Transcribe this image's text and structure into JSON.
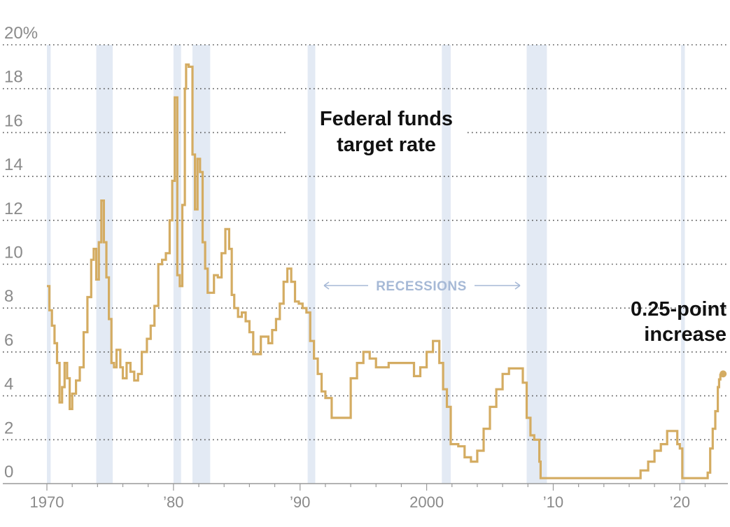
{
  "chart_data": {
    "type": "line",
    "title": "Federal funds\ntarget rate",
    "xlabel": "",
    "ylabel": "",
    "xlim": [
      1970,
      2023.3
    ],
    "ylim": [
      0,
      20
    ],
    "yticks": [
      {
        "value": 0,
        "label": "0"
      },
      {
        "value": 2,
        "label": "2"
      },
      {
        "value": 4,
        "label": "4"
      },
      {
        "value": 6,
        "label": "6"
      },
      {
        "value": 8,
        "label": "8"
      },
      {
        "value": 10,
        "label": "10"
      },
      {
        "value": 12,
        "label": "12"
      },
      {
        "value": 14,
        "label": "14"
      },
      {
        "value": 16,
        "label": "16"
      },
      {
        "value": 18,
        "label": "18"
      },
      {
        "value": 20,
        "label": "20%"
      }
    ],
    "xticks": [
      {
        "value": 1970,
        "label": "1970"
      },
      {
        "value": 1980,
        "label": "’80"
      },
      {
        "value": 1990,
        "label": "’90"
      },
      {
        "value": 2000,
        "label": "2000"
      },
      {
        "value": 2010,
        "label": "’10"
      },
      {
        "value": 2020,
        "label": "’20"
      }
    ],
    "grid": true,
    "recession_label": "RECESSIONS",
    "recessions": [
      [
        1970.0,
        1970.3
      ],
      [
        1973.9,
        1975.2
      ],
      [
        1980.0,
        1980.6
      ],
      [
        1981.5,
        1982.9
      ],
      [
        1990.6,
        1991.2
      ],
      [
        2001.2,
        2001.9
      ],
      [
        2007.9,
        2009.5
      ],
      [
        2020.1,
        2020.4
      ]
    ],
    "annotation": "0.25-point\nincrease",
    "series": [
      {
        "color": "#d4ac62",
        "x": [
          1970.0,
          1970.2,
          1970.4,
          1970.6,
          1970.8,
          1971.0,
          1971.2,
          1971.4,
          1971.6,
          1971.8,
          1972.0,
          1972.3,
          1972.6,
          1972.9,
          1973.2,
          1973.5,
          1973.7,
          1973.9,
          1974.1,
          1974.3,
          1974.5,
          1974.7,
          1974.9,
          1975.1,
          1975.3,
          1975.5,
          1975.8,
          1976.0,
          1976.3,
          1976.6,
          1976.9,
          1977.2,
          1977.5,
          1977.9,
          1978.2,
          1978.5,
          1978.8,
          1979.1,
          1979.4,
          1979.7,
          1979.9,
          1980.1,
          1980.3,
          1980.5,
          1980.7,
          1980.9,
          1981.0,
          1981.2,
          1981.5,
          1981.7,
          1981.9,
          1982.1,
          1982.3,
          1982.5,
          1982.7,
          1982.9,
          1983.2,
          1983.5,
          1983.8,
          1984.1,
          1984.4,
          1984.6,
          1984.8,
          1985.1,
          1985.4,
          1985.7,
          1986.0,
          1986.3,
          1986.6,
          1986.9,
          1987.2,
          1987.5,
          1987.8,
          1988.1,
          1988.4,
          1988.7,
          1989.0,
          1989.3,
          1989.6,
          1989.9,
          1990.2,
          1990.5,
          1990.8,
          1991.1,
          1991.4,
          1991.7,
          1992.0,
          1992.5,
          1993.0,
          1994.0,
          1994.5,
          1995.0,
          1995.5,
          1996.0,
          1997.0,
          1998.5,
          1999.0,
          1999.5,
          2000.0,
          2000.5,
          2001.0,
          2001.3,
          2001.6,
          2001.9,
          2002.5,
          2003.0,
          2003.5,
          2004.0,
          2004.5,
          2005.0,
          2005.5,
          2006.0,
          2006.5,
          2007.0,
          2007.6,
          2007.9,
          2008.2,
          2008.5,
          2008.9,
          2009.0,
          2011.0,
          2013.0,
          2015.9,
          2016.9,
          2017.5,
          2018.0,
          2018.5,
          2019.0,
          2019.5,
          2019.8,
          2020.0,
          2020.2,
          2021.0,
          2022.0,
          2022.2,
          2022.4,
          2022.6,
          2022.8,
          2023.0,
          2023.1,
          2023.2
        ],
        "y": [
          9.0,
          7.9,
          7.2,
          6.4,
          5.5,
          3.7,
          4.4,
          5.5,
          4.8,
          3.4,
          4.1,
          4.7,
          5.3,
          6.9,
          8.5,
          10.2,
          10.7,
          9.3,
          11.0,
          12.9,
          11.0,
          9.4,
          7.5,
          5.5,
          5.3,
          6.1,
          5.3,
          4.8,
          5.5,
          5.1,
          4.7,
          5.0,
          6.0,
          6.6,
          7.2,
          8.1,
          10.0,
          10.2,
          10.5,
          12.0,
          13.8,
          17.6,
          9.5,
          9.0,
          12.7,
          18.0,
          19.1,
          19.0,
          15.0,
          12.5,
          14.8,
          14.2,
          11.0,
          9.8,
          8.7,
          8.7,
          9.5,
          9.4,
          10.5,
          11.6,
          10.7,
          8.6,
          8.0,
          7.6,
          7.8,
          7.4,
          6.9,
          5.9,
          5.9,
          6.7,
          6.7,
          6.4,
          7.0,
          7.5,
          8.2,
          9.2,
          9.8,
          9.2,
          8.3,
          8.2,
          8.0,
          7.8,
          6.5,
          5.7,
          5.0,
          4.2,
          3.9,
          3.0,
          3.0,
          4.8,
          5.5,
          6.0,
          5.7,
          5.3,
          5.5,
          5.5,
          4.9,
          5.3,
          6.0,
          6.5,
          5.5,
          4.3,
          3.5,
          1.8,
          1.7,
          1.2,
          1.0,
          1.5,
          2.5,
          3.5,
          4.3,
          5.0,
          5.25,
          5.25,
          4.6,
          3.0,
          2.2,
          2.0,
          1.0,
          0.25,
          0.25,
          0.25,
          0.25,
          0.6,
          1.0,
          1.5,
          1.8,
          2.4,
          2.4,
          1.8,
          1.6,
          0.25,
          0.25,
          0.25,
          0.5,
          1.6,
          2.5,
          3.3,
          4.4,
          4.75,
          5.0
        ]
      }
    ]
  }
}
